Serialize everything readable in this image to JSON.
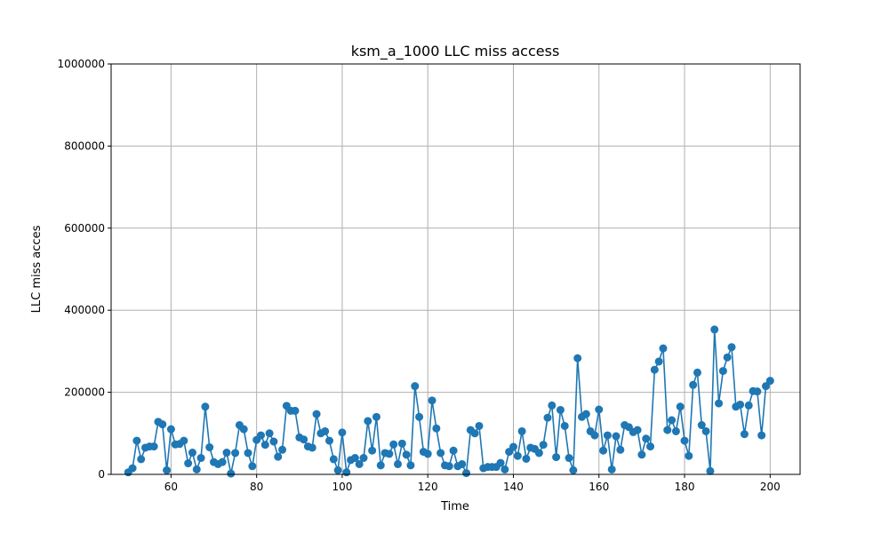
{
  "chart_data": {
    "type": "line",
    "title": "ksm_a_1000 LLC miss access",
    "xlabel": "Time",
    "ylabel": "LLC miss acces",
    "xlim": [
      46,
      207
    ],
    "ylim": [
      0,
      1000000
    ],
    "xticks": [
      60,
      80,
      100,
      120,
      140,
      160,
      180,
      200
    ],
    "yticks": [
      0,
      200000,
      400000,
      600000,
      800000,
      1000000
    ],
    "grid": true,
    "marker": "circle",
    "color": "#1f77b4",
    "series": [
      {
        "x": [
          50,
          51,
          52,
          53,
          54,
          55,
          56,
          57,
          58,
          59,
          60,
          61,
          62,
          63,
          64,
          65,
          66,
          67,
          68,
          69,
          70,
          71,
          72,
          73,
          74,
          75,
          76,
          77,
          78,
          79,
          80,
          81,
          82,
          83,
          84,
          85,
          86,
          87,
          88,
          89,
          90,
          91,
          92,
          93,
          94,
          95,
          96,
          97,
          98,
          99,
          100,
          101,
          102,
          103,
          104,
          105,
          106,
          107,
          108,
          109,
          110,
          111,
          112,
          113,
          114,
          115,
          116,
          117,
          118,
          119,
          120,
          121,
          122,
          123,
          124,
          125,
          126,
          127,
          128,
          129,
          130,
          131,
          132,
          133,
          134,
          135,
          136,
          137,
          138,
          139,
          140,
          141,
          142,
          143,
          144,
          145,
          146,
          147,
          148,
          149,
          150,
          151,
          152,
          153,
          154,
          155,
          156,
          157,
          158,
          159,
          160,
          161,
          162,
          163,
          164,
          165,
          166,
          167,
          168,
          169,
          170,
          171,
          172,
          173,
          174,
          175,
          176,
          177,
          178,
          179,
          180,
          181,
          182,
          183,
          184,
          185,
          186,
          187,
          188,
          189,
          190,
          191,
          192,
          193,
          194,
          195,
          196,
          197,
          198,
          199,
          200
        ],
        "values": [
          5000,
          15000,
          82000,
          37000,
          65000,
          68000,
          68000,
          128000,
          122000,
          10000,
          110000,
          73000,
          74000,
          82000,
          27000,
          53000,
          12000,
          40000,
          165000,
          66000,
          30000,
          25000,
          30000,
          53000,
          2000,
          52000,
          120000,
          110000,
          52000,
          20000,
          84000,
          95000,
          72000,
          100000,
          80000,
          43000,
          60000,
          167000,
          155000,
          155000,
          90000,
          85000,
          68000,
          65000,
          147000,
          100000,
          105000,
          82000,
          37000,
          10000,
          102000,
          5000,
          35000,
          40000,
          25000,
          40000,
          130000,
          58000,
          140000,
          22000,
          52000,
          50000,
          73000,
          25000,
          75000,
          48000,
          22000,
          215000,
          140000,
          55000,
          50000,
          180000,
          112000,
          52000,
          22000,
          20000,
          58000,
          20000,
          25000,
          3000,
          108000,
          100000,
          118000,
          15000,
          18000,
          18000,
          18000,
          28000,
          12000,
          55000,
          67000,
          45000,
          105000,
          38000,
          65000,
          62000,
          52000,
          72000,
          138000,
          168000,
          42000,
          157000,
          118000,
          40000,
          10000,
          283000,
          140000,
          147000,
          105000,
          95000,
          158000,
          58000,
          95000,
          12000,
          93000,
          60000,
          120000,
          115000,
          103000,
          108000,
          48000,
          87000,
          68000,
          255000,
          275000,
          307000,
          108000,
          132000,
          105000,
          165000,
          82000,
          45000,
          218000,
          248000,
          120000,
          105000,
          8000,
          353000,
          173000,
          252000,
          285000,
          310000,
          165000,
          170000,
          98000,
          168000,
          203000,
          202000,
          95000,
          215000,
          228000
        ]
      }
    ]
  }
}
